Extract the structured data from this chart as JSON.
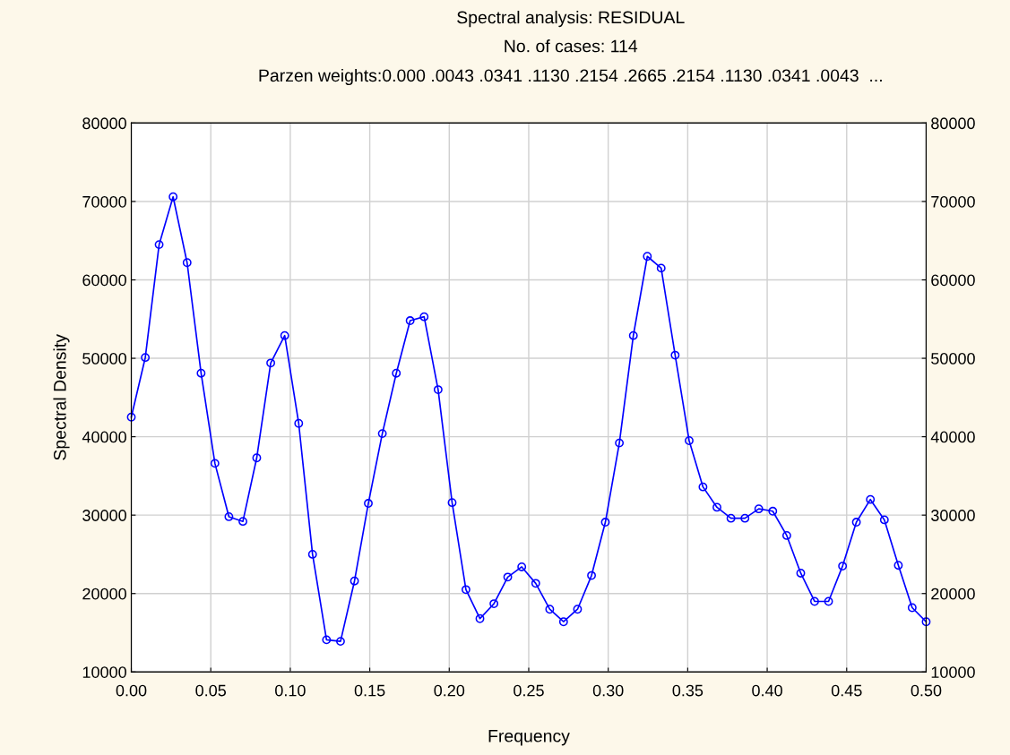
{
  "chart_data": {
    "type": "line",
    "title": "Spectral analysis: RESIDUAL",
    "subtitle": "No. of cases: 114",
    "annotations": [
      "Parzen weights:0.000 .0043 .0341 .1130 .2154 .2665 .2154 .1130 .0341 .0043  ..."
    ],
    "xlabel": "Frequency",
    "ylabel": "Spectral Density",
    "x": [
      0,
      0.0088,
      0.0175,
      0.0263,
      0.0351,
      0.0439,
      0.0526,
      0.0614,
      0.0702,
      0.0789,
      0.0877,
      0.0965,
      0.1053,
      0.114,
      0.1228,
      0.1316,
      0.1404,
      0.1491,
      0.1579,
      0.1667,
      0.1754,
      0.1842,
      0.193,
      0.2018,
      0.2105,
      0.2193,
      0.2281,
      0.2368,
      0.2456,
      0.2544,
      0.2632,
      0.2719,
      0.2807,
      0.2895,
      0.2982,
      0.307,
      0.3158,
      0.3246,
      0.3333,
      0.3421,
      0.3509,
      0.3596,
      0.3684,
      0.3772,
      0.386,
      0.3947,
      0.4035,
      0.4123,
      0.4211,
      0.4298,
      0.4386,
      0.4474,
      0.4561,
      0.4649,
      0.4737,
      0.4825,
      0.4912,
      0.5
    ],
    "series": [
      {
        "color": "#0000ff",
        "values": [
          42500,
          50100,
          64500,
          70600,
          62200,
          48100,
          36600,
          29800,
          29200,
          37300,
          49400,
          52900,
          41700,
          25000,
          14100,
          13900,
          21600,
          31500,
          40400,
          48100,
          54800,
          55300,
          46000,
          31600,
          20500,
          16800,
          18700,
          22100,
          23400,
          21300,
          18000,
          16400,
          18000,
          22300,
          29100,
          39200,
          52900,
          63000,
          61500,
          50400,
          39500,
          33600,
          31000,
          29600,
          29600,
          30800,
          30500,
          27400,
          22600,
          19000,
          19000,
          23500,
          29100,
          32000,
          29400,
          23600,
          18200,
          16400
        ]
      }
    ],
    "xlim": [
      0,
      0.5
    ],
    "xticks": [
      {
        "value": 0,
        "label": "0.00"
      },
      {
        "value": 0.05,
        "label": "0.05"
      },
      {
        "value": 0.1,
        "label": "0.10"
      },
      {
        "value": 0.15,
        "label": "0.15"
      },
      {
        "value": 0.2,
        "label": "0.20"
      },
      {
        "value": 0.25,
        "label": "0.25"
      },
      {
        "value": 0.3,
        "label": "0.30"
      },
      {
        "value": 0.35,
        "label": "0.35"
      },
      {
        "value": 0.4,
        "label": "0.40"
      },
      {
        "value": 0.45,
        "label": "0.45"
      },
      {
        "value": 0.5,
        "label": "0.50"
      }
    ],
    "ylim": [
      10000,
      80000
    ],
    "yticks": [
      10000,
      20000,
      30000,
      40000,
      50000,
      60000,
      70000,
      80000
    ],
    "y2lim": [
      10000,
      80000
    ],
    "y2ticks": [
      10000,
      20000,
      30000,
      40000,
      50000,
      60000,
      70000,
      80000
    ],
    "grid": true,
    "marker": "circle",
    "line_style": "solid"
  }
}
